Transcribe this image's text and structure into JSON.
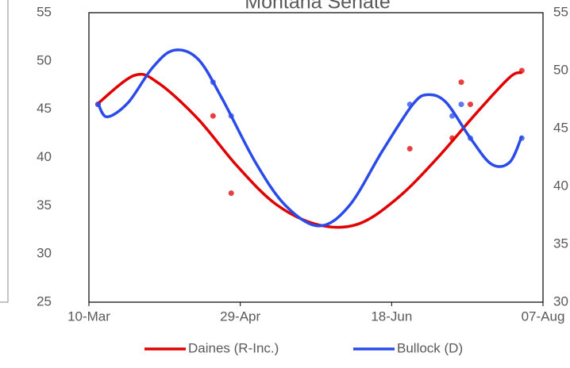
{
  "chart_data": {
    "type": "line",
    "title": "Montana Senate",
    "xlim": [
      69,
      219
    ],
    "xticks": [
      {
        "value": 69,
        "label": "10-Mar"
      },
      {
        "value": 119,
        "label": "29-Apr"
      },
      {
        "value": 169,
        "label": "18-Jun"
      },
      {
        "value": 219,
        "label": "07-Aug"
      }
    ],
    "ylim": [
      25,
      55
    ],
    "yticks": [
      25,
      30,
      35,
      40,
      45,
      50,
      55
    ],
    "y2lim": [
      30,
      55
    ],
    "y2ticks": [
      30,
      35,
      40,
      45,
      50,
      55
    ],
    "grid": false,
    "legend": "bottom",
    "series": [
      {
        "name": "Daines (R-Inc.)",
        "color": "#e00000",
        "x": [
          72,
          84,
          92,
          105,
          118,
          131,
          145,
          158,
          171,
          184,
          197,
          208,
          212
        ],
        "values": [
          45.6,
          48.5,
          47.7,
          44.0,
          39.1,
          35.1,
          33.0,
          33.1,
          35.8,
          39.9,
          44.6,
          48.3,
          48.8
        ],
        "points_x": [
          72,
          110,
          116,
          175,
          189,
          192,
          195,
          212
        ],
        "points": [
          45.5,
          44.3,
          36.3,
          40.9,
          42.0,
          47.8,
          45.5,
          49.0
        ]
      },
      {
        "name": "Bullock (D)",
        "color": "#2a4bea",
        "x": [
          72,
          75,
          82,
          90,
          97,
          105,
          113,
          124,
          134,
          145,
          155,
          166,
          176,
          181,
          187,
          195,
          202,
          208,
          212
        ],
        "values": [
          45.6,
          44.2,
          45.7,
          49.3,
          51.1,
          50.2,
          46.1,
          39.5,
          35.0,
          32.9,
          35.0,
          40.7,
          45.5,
          46.5,
          45.7,
          42.0,
          39.3,
          39.5,
          42.2
        ],
        "points_x": [
          72,
          110,
          116,
          175,
          189,
          192,
          195,
          212
        ],
        "points": [
          45.5,
          47.8,
          44.3,
          45.5,
          44.3,
          45.5,
          42.0,
          42.0
        ]
      }
    ]
  }
}
